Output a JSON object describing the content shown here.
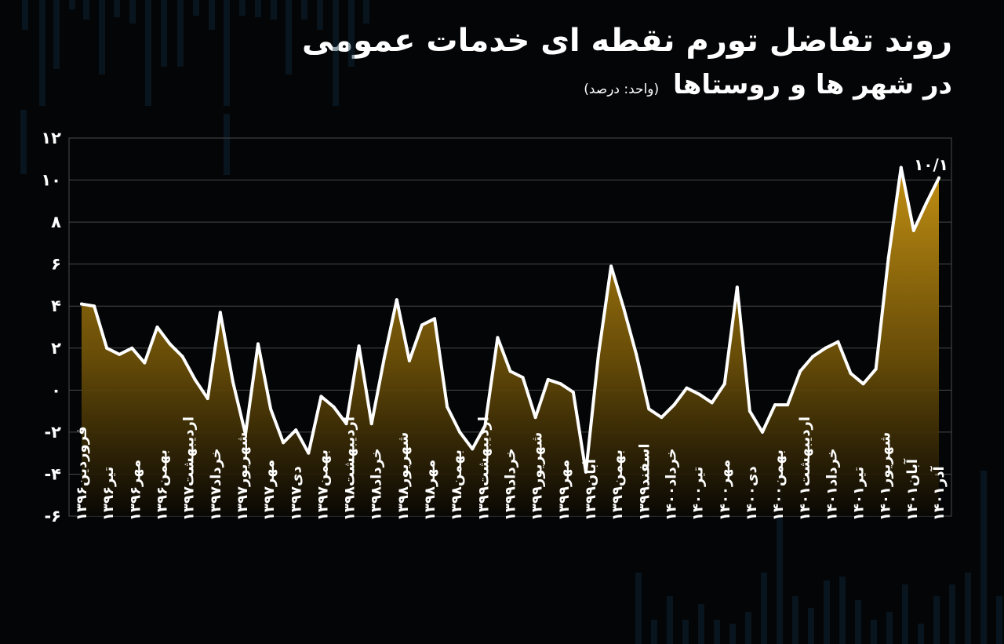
{
  "chart_data": {
    "type": "area",
    "title_line1": "روند تفاضل تورم نقطه ای خدمات عمومی",
    "title_line2": "در شهر ها و روستاها",
    "unit_label": "(واحد: درصد)",
    "y_ticks": [
      "۱۲",
      "۱۰",
      "۸",
      "۶",
      "۴",
      "۲",
      "۰",
      "-۲",
      "-۴",
      "-۶"
    ],
    "ylim": [
      -6,
      12
    ],
    "grid": true,
    "end_label": "۱۰/۱",
    "x_tick_labels": [
      "فروردین۱۳۹۶",
      "تیر۱۳۹۶",
      "مهر۱۳۹۶",
      "بهمن۱۳۹۶",
      "اردیبهشت۱۳۹۷",
      "خرداد۱۳۹۷",
      "شهریور۱۳۹۷",
      "مهر۱۳۹۷",
      "دی۱۳۹۷",
      "بهمن۱۳۹۷",
      "اردیبهشت۱۳۹۸",
      "خرداد۱۳۹۸",
      "شهریور۱۳۹۸",
      "مهر۱۳۹۸",
      "بهمن۱۳۹۸",
      "اردیبهشت۱۳۹۹",
      "خرداد۱۳۹۹",
      "شهریور۱۳۹۹",
      "مهر۱۳۹۹",
      "آبان۱۳۹۹",
      "بهمن۱۳۹۹",
      "اسفند۱۳۹۹",
      "خرداد۱۴۰۰",
      "تیر۱۴۰۰",
      "مهر۱۴۰۰",
      "دی۱۴۰۰",
      "بهمن۱۴۰۰",
      "اردیبهشت۱۴۰۱",
      "خرداد۱۴۰۱",
      "تیر۱۴۰۱",
      "شهریور۱۴۰۱",
      "آبان۱۴۰۱",
      "آذر۱۴۰۱"
    ],
    "values": [
      4.1,
      4.0,
      2.0,
      1.7,
      2.0,
      1.3,
      3.0,
      2.2,
      1.6,
      0.5,
      -0.4,
      3.7,
      0.4,
      -2.1,
      2.2,
      -0.9,
      -2.5,
      -1.9,
      -3.0,
      -0.3,
      -0.8,
      -1.6,
      2.1,
      -1.6,
      1.5,
      4.3,
      1.4,
      3.1,
      3.4,
      -0.8,
      -2.0,
      -2.8,
      -1.7,
      2.5,
      0.9,
      0.6,
      -1.3,
      0.5,
      0.3,
      -0.1,
      -3.9,
      1.7,
      5.9,
      3.9,
      1.7,
      -0.9,
      -1.3,
      -0.7,
      0.1,
      -0.2,
      -0.6,
      0.3,
      4.9,
      -1.0,
      -2.0,
      -0.7,
      -0.7,
      0.9,
      1.6,
      2.0,
      2.3,
      0.8,
      0.3,
      1.0,
      6.3,
      10.6,
      7.6,
      8.9,
      10.1
    ],
    "colors": {
      "line": "#ffffff",
      "fill_top": "#b8860b",
      "fill_bottom": "#0a0804",
      "grid": "#4a4a4a",
      "background": "#040506"
    }
  }
}
